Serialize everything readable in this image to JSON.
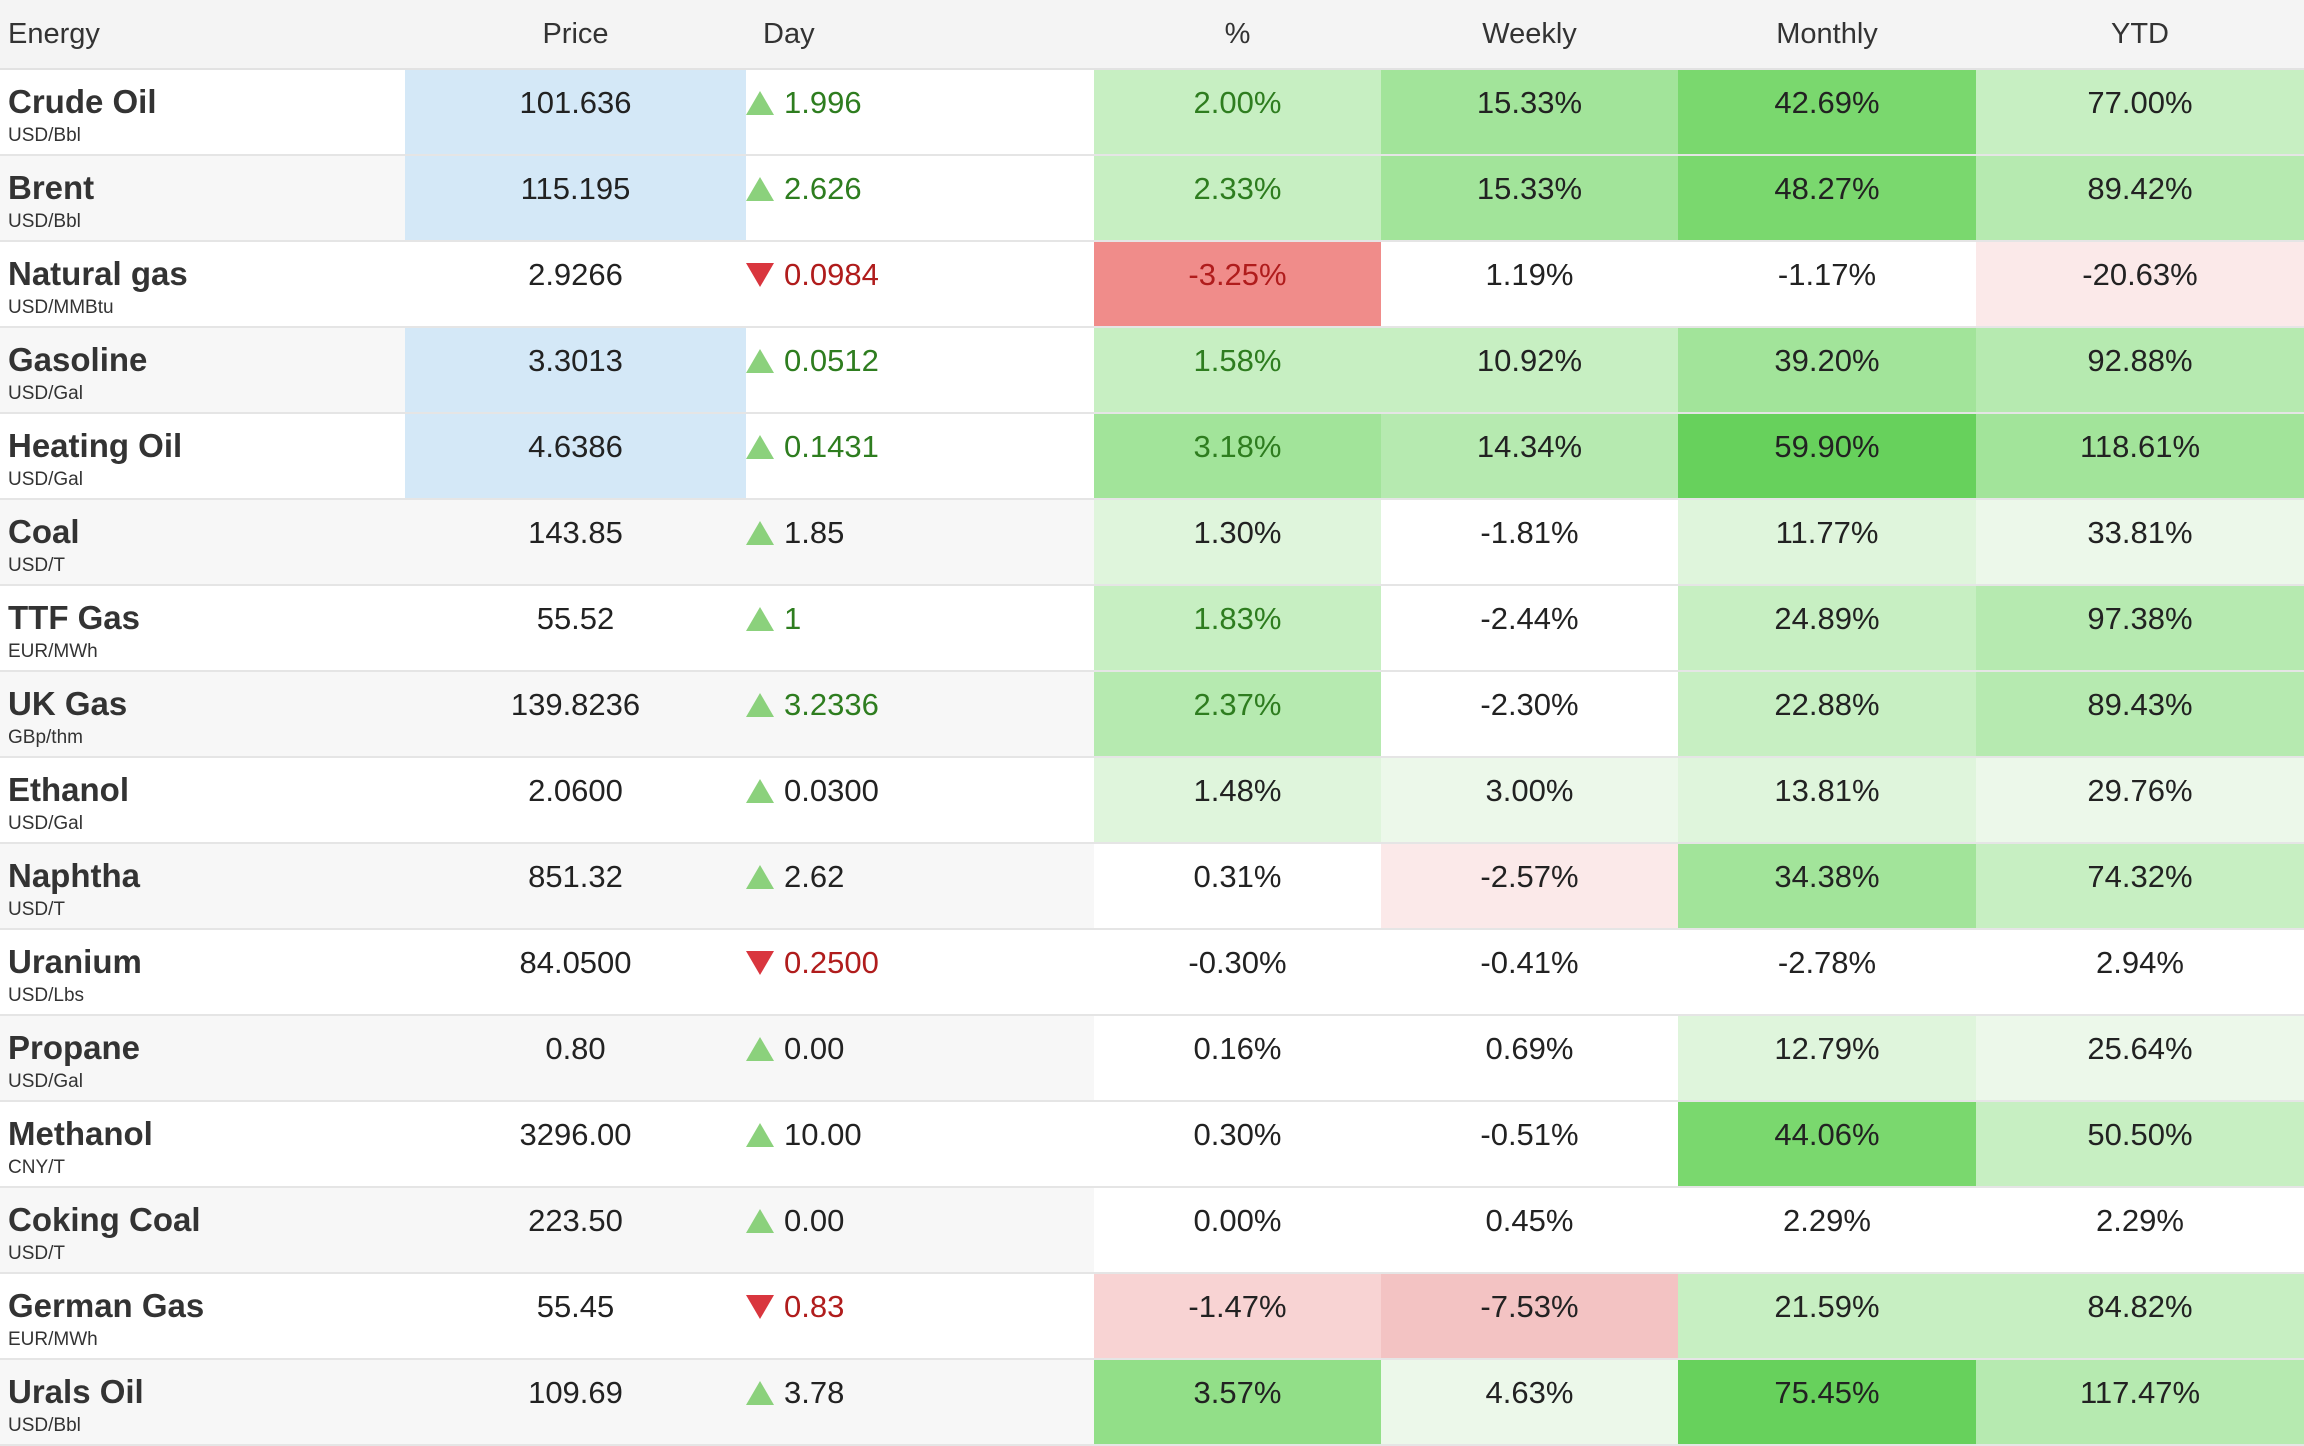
{
  "colors": {
    "header_bg": "#f4f4f4",
    "alt_row_bg": "#f7f7f7",
    "price_highlight": "#d4e8f7",
    "up_arrow": "#8bd17c",
    "down_arrow": "#d9363e",
    "text_green": "#2e7d1f",
    "text_red": "#b01c1c",
    "heat": {
      "g1": "#ecf8ea",
      "g2": "#dff5dc",
      "g3": "#c7efc2",
      "g4": "#b6eab0",
      "g5": "#a2e49a",
      "g6": "#92df88",
      "g7": "#7ad86e",
      "g8": "#67d15c",
      "r1": "#fbe9e9",
      "r2": "#f8d3d3",
      "r3": "#f3c3c3",
      "r4": "#f08c8a"
    }
  },
  "headers": {
    "name": "Energy",
    "price": "Price",
    "day": "Day",
    "pct": "%",
    "weekly": "Weekly",
    "monthly": "Monthly",
    "ytd": "YTD"
  },
  "rows": [
    {
      "name": "Crude Oil",
      "unit": "USD/Bbl",
      "price": "101.636",
      "price_highlight": true,
      "dir": "up",
      "day": "1.996",
      "pct": "2.00%",
      "pct_bg": "g3",
      "pct_color": "green",
      "weekly": "15.33%",
      "weekly_bg": "g5",
      "monthly": "42.69%",
      "monthly_bg": "g7",
      "ytd": "77.00%",
      "ytd_bg": "g3"
    },
    {
      "name": "Brent",
      "unit": "USD/Bbl",
      "price": "115.195",
      "price_highlight": true,
      "dir": "up",
      "day": "2.626",
      "pct": "2.33%",
      "pct_bg": "g3",
      "pct_color": "green",
      "weekly": "15.33%",
      "weekly_bg": "g5",
      "monthly": "48.27%",
      "monthly_bg": "g7",
      "ytd": "89.42%",
      "ytd_bg": "g4"
    },
    {
      "name": "Natural gas",
      "unit": "USD/MMBtu",
      "price": "2.9266",
      "price_highlight": false,
      "dir": "down",
      "day": "0.0984",
      "pct": "-3.25%",
      "pct_bg": "r4",
      "pct_color": "red",
      "weekly": "1.19%",
      "weekly_bg": "",
      "monthly": "-1.17%",
      "monthly_bg": "",
      "ytd": "-20.63%",
      "ytd_bg": "r1"
    },
    {
      "name": "Gasoline",
      "unit": "USD/Gal",
      "price": "3.3013",
      "price_highlight": true,
      "dir": "up",
      "day": "0.0512",
      "pct": "1.58%",
      "pct_bg": "g3",
      "pct_color": "green",
      "weekly": "10.92%",
      "weekly_bg": "g3",
      "monthly": "39.20%",
      "monthly_bg": "g5",
      "ytd": "92.88%",
      "ytd_bg": "g4"
    },
    {
      "name": "Heating Oil",
      "unit": "USD/Gal",
      "price": "4.6386",
      "price_highlight": true,
      "dir": "up",
      "day": "0.1431",
      "pct": "3.18%",
      "pct_bg": "g5",
      "pct_color": "green",
      "weekly": "14.34%",
      "weekly_bg": "g4",
      "monthly": "59.90%",
      "monthly_bg": "g8",
      "ytd": "118.61%",
      "ytd_bg": "g5"
    },
    {
      "name": "Coal",
      "unit": "USD/T",
      "price": "143.85",
      "price_highlight": false,
      "dir": "up",
      "day": "1.85",
      "pct": "1.30%",
      "pct_bg": "g2",
      "pct_color": "dark",
      "weekly": "-1.81%",
      "weekly_bg": "",
      "monthly": "11.77%",
      "monthly_bg": "g2",
      "ytd": "33.81%",
      "ytd_bg": "g1"
    },
    {
      "name": "TTF Gas",
      "unit": "EUR/MWh",
      "price": "55.52",
      "price_highlight": false,
      "dir": "up",
      "day": "1",
      "pct": "1.83%",
      "pct_bg": "g3",
      "pct_color": "green",
      "weekly": "-2.44%",
      "weekly_bg": "",
      "monthly": "24.89%",
      "monthly_bg": "g3",
      "ytd": "97.38%",
      "ytd_bg": "g4"
    },
    {
      "name": "UK Gas",
      "unit": "GBp/thm",
      "price": "139.8236",
      "price_highlight": false,
      "dir": "up",
      "day": "3.2336",
      "pct": "2.37%",
      "pct_bg": "g4",
      "pct_color": "green",
      "weekly": "-2.30%",
      "weekly_bg": "",
      "monthly": "22.88%",
      "monthly_bg": "g3",
      "ytd": "89.43%",
      "ytd_bg": "g4"
    },
    {
      "name": "Ethanol",
      "unit": "USD/Gal",
      "price": "2.0600",
      "price_highlight": false,
      "dir": "up",
      "day": "0.0300",
      "pct": "1.48%",
      "pct_bg": "g2",
      "pct_color": "dark",
      "weekly": "3.00%",
      "weekly_bg": "g1",
      "monthly": "13.81%",
      "monthly_bg": "g2",
      "ytd": "29.76%",
      "ytd_bg": "g1"
    },
    {
      "name": "Naphtha",
      "unit": "USD/T",
      "price": "851.32",
      "price_highlight": false,
      "dir": "up",
      "day": "2.62",
      "pct": "0.31%",
      "pct_bg": "",
      "pct_color": "dark",
      "weekly": "-2.57%",
      "weekly_bg": "r1",
      "monthly": "34.38%",
      "monthly_bg": "g5",
      "ytd": "74.32%",
      "ytd_bg": "g3"
    },
    {
      "name": "Uranium",
      "unit": "USD/Lbs",
      "price": "84.0500",
      "price_highlight": false,
      "dir": "down",
      "day": "0.2500",
      "pct": "-0.30%",
      "pct_bg": "",
      "pct_color": "dark",
      "weekly": "-0.41%",
      "weekly_bg": "",
      "monthly": "-2.78%",
      "monthly_bg": "",
      "ytd": "2.94%",
      "ytd_bg": ""
    },
    {
      "name": "Propane",
      "unit": "USD/Gal",
      "price": "0.80",
      "price_highlight": false,
      "dir": "up",
      "day": "0.00",
      "pct": "0.16%",
      "pct_bg": "",
      "pct_color": "dark",
      "weekly": "0.69%",
      "weekly_bg": "",
      "monthly": "12.79%",
      "monthly_bg": "g2",
      "ytd": "25.64%",
      "ytd_bg": "g1"
    },
    {
      "name": "Methanol",
      "unit": "CNY/T",
      "price": "3296.00",
      "price_highlight": false,
      "dir": "up",
      "day": "10.00",
      "pct": "0.30%",
      "pct_bg": "",
      "pct_color": "dark",
      "weekly": "-0.51%",
      "weekly_bg": "",
      "monthly": "44.06%",
      "monthly_bg": "g7",
      "ytd": "50.50%",
      "ytd_bg": "g3"
    },
    {
      "name": "Coking Coal",
      "unit": "USD/T",
      "price": "223.50",
      "price_highlight": false,
      "dir": "up",
      "day": "0.00",
      "pct": "0.00%",
      "pct_bg": "",
      "pct_color": "dark",
      "weekly": "0.45%",
      "weekly_bg": "",
      "monthly": "2.29%",
      "monthly_bg": "",
      "ytd": "2.29%",
      "ytd_bg": ""
    },
    {
      "name": "German Gas",
      "unit": "EUR/MWh",
      "price": "55.45",
      "price_highlight": false,
      "dir": "down",
      "day": "0.83",
      "pct": "-1.47%",
      "pct_bg": "r2",
      "pct_color": "dark",
      "weekly": "-7.53%",
      "weekly_bg": "r3",
      "monthly": "21.59%",
      "monthly_bg": "g3",
      "ytd": "84.82%",
      "ytd_bg": "g3"
    },
    {
      "name": "Urals Oil",
      "unit": "USD/Bbl",
      "price": "109.69",
      "price_highlight": false,
      "dir": "up",
      "day": "3.78",
      "pct": "3.57%",
      "pct_bg": "g6",
      "pct_color": "dark",
      "weekly": "4.63%",
      "weekly_bg": "g1",
      "monthly": "75.45%",
      "monthly_bg": "g8",
      "ytd": "117.47%",
      "ytd_bg": "g4"
    }
  ]
}
